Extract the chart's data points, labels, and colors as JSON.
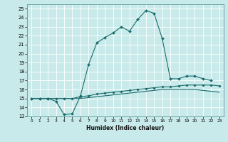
{
  "title": "",
  "xlabel": "Humidex (Indice chaleur)",
  "ylabel": "",
  "bg_color": "#c8eaea",
  "grid_color": "#ffffff",
  "line_color": "#1a6b6b",
  "xlim": [
    -0.5,
    23.5
  ],
  "ylim": [
    13,
    25.5
  ],
  "xticks": [
    0,
    1,
    2,
    3,
    4,
    5,
    6,
    7,
    8,
    9,
    10,
    11,
    12,
    13,
    14,
    15,
    16,
    17,
    18,
    19,
    20,
    21,
    22,
    23
  ],
  "yticks": [
    13,
    14,
    15,
    16,
    17,
    18,
    19,
    20,
    21,
    22,
    23,
    24,
    25
  ],
  "curve1_x": [
    0,
    1,
    2,
    3,
    4,
    5,
    6,
    7,
    8,
    9,
    10,
    11,
    12,
    13,
    14,
    15,
    16,
    17,
    18,
    19,
    20,
    21,
    22
  ],
  "curve1_y": [
    15.0,
    15.0,
    15.0,
    14.7,
    13.2,
    13.3,
    15.3,
    18.8,
    21.2,
    21.8,
    22.3,
    23.0,
    22.5,
    23.8,
    24.8,
    24.5,
    21.7,
    17.2,
    17.2,
    17.5,
    17.5,
    17.2,
    17.0
  ],
  "curve2_x": [
    0,
    1,
    2,
    3,
    4,
    5,
    6,
    7,
    8,
    9,
    10,
    11,
    12,
    13,
    14,
    15,
    16,
    17,
    18,
    19,
    20,
    21,
    22,
    23
  ],
  "curve2_y": [
    15.0,
    15.0,
    15.0,
    15.0,
    15.0,
    15.0,
    15.2,
    15.3,
    15.5,
    15.6,
    15.7,
    15.8,
    15.9,
    16.0,
    16.1,
    16.2,
    16.3,
    16.3,
    16.4,
    16.5,
    16.5,
    16.5,
    16.5,
    16.4
  ],
  "curve3_x": [
    0,
    1,
    2,
    3,
    4,
    5,
    6,
    7,
    8,
    9,
    10,
    11,
    12,
    13,
    14,
    15,
    16,
    17,
    18,
    19,
    20,
    21,
    22,
    23
  ],
  "curve3_y": [
    15.0,
    15.0,
    15.0,
    15.0,
    15.0,
    15.0,
    15.0,
    15.1,
    15.2,
    15.3,
    15.4,
    15.5,
    15.6,
    15.7,
    15.8,
    15.9,
    16.0,
    16.0,
    16.0,
    16.0,
    16.0,
    15.9,
    15.8,
    15.7
  ]
}
